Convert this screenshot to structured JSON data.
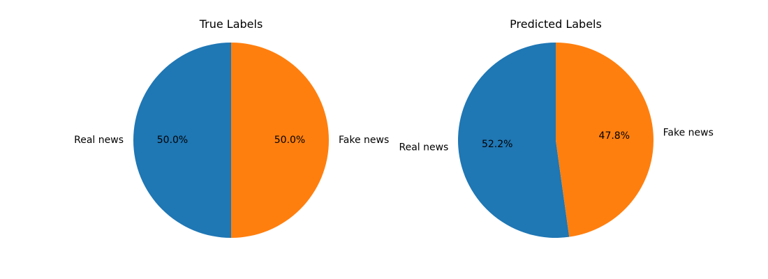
{
  "chart_data": [
    {
      "type": "pie",
      "title": "True Labels",
      "labels": [
        "Real news",
        "Fake news"
      ],
      "values": [
        50.0,
        50.0
      ],
      "percent_labels": [
        "50.0%",
        "50.0%"
      ],
      "colors": [
        "#1f77b4",
        "#ff7f0e"
      ],
      "start_angle_deg": 90,
      "legend": "none"
    },
    {
      "type": "pie",
      "title": "Predicted Labels",
      "labels": [
        "Real news",
        "Fake news"
      ],
      "values": [
        52.2,
        47.8
      ],
      "percent_labels": [
        "52.2%",
        "47.8%"
      ],
      "colors": [
        "#1f77b4",
        "#ff7f0e"
      ],
      "start_angle_deg": 90,
      "legend": "none"
    }
  ]
}
